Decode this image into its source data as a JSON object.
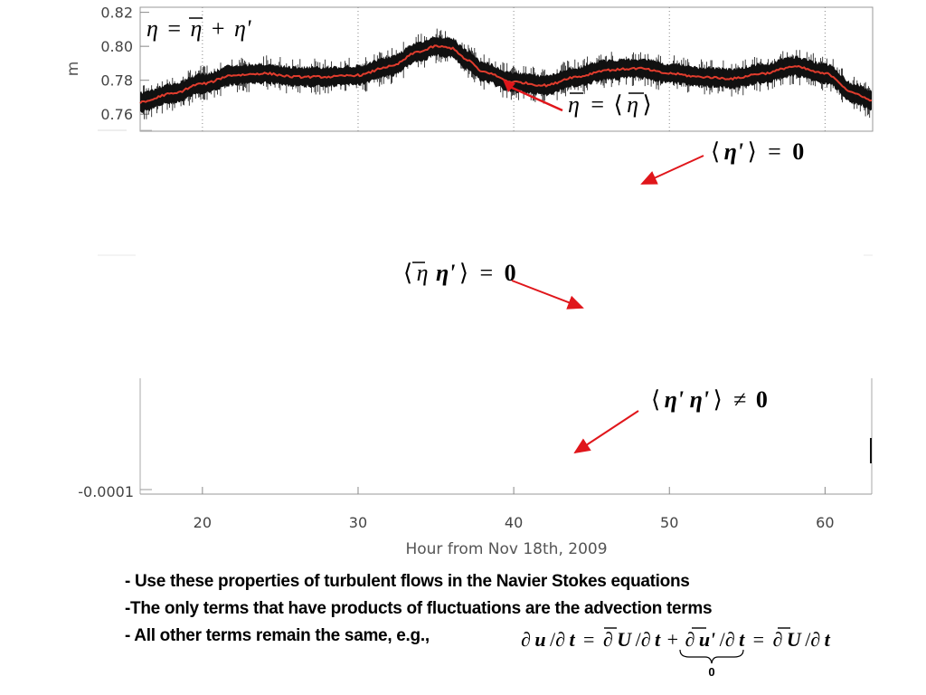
{
  "chart_data": [
    {
      "type": "line",
      "title": "",
      "xlabel": "Hour from Nov 18th, 2009",
      "ylabel": "m",
      "xlim": [
        16,
        63
      ],
      "ylim": [
        0.75,
        0.823
      ],
      "xticks": [
        20,
        30,
        40,
        50,
        60
      ],
      "xtick_labels": [
        "20",
        "30",
        "40",
        "50",
        "60"
      ],
      "yticks": [
        0.76,
        0.78,
        0.8,
        0.82
      ],
      "ytick_labels": [
        "0.76",
        "0.78",
        "0.80",
        "0.82"
      ],
      "grid": "vertical dotted at x ticks",
      "series": [
        {
          "name": "η",
          "color": "#111111",
          "style": "noisy raw signal",
          "x": [
            16,
            18,
            20,
            22,
            24,
            26,
            28,
            30,
            32,
            34,
            35,
            36,
            37,
            38,
            40,
            42,
            44,
            46,
            48,
            50,
            52,
            54,
            56,
            58,
            60,
            62,
            63
          ],
          "y": [
            0.767,
            0.772,
            0.778,
            0.783,
            0.784,
            0.782,
            0.782,
            0.783,
            0.788,
            0.797,
            0.8,
            0.799,
            0.792,
            0.785,
            0.779,
            0.777,
            0.782,
            0.786,
            0.787,
            0.784,
            0.782,
            0.781,
            0.784,
            0.788,
            0.784,
            0.772,
            0.768
          ],
          "noise_band": 0.006
        },
        {
          "name": "η̄ = ⟨η⟩",
          "color": "#e03c2d",
          "style": "smoothed mean",
          "x": [
            16,
            18,
            20,
            22,
            24,
            26,
            28,
            30,
            32,
            34,
            35,
            36,
            37,
            38,
            40,
            42,
            44,
            46,
            48,
            50,
            52,
            54,
            56,
            58,
            60,
            62,
            63
          ],
          "y": [
            0.767,
            0.772,
            0.778,
            0.783,
            0.784,
            0.782,
            0.782,
            0.783,
            0.788,
            0.797,
            0.8,
            0.799,
            0.792,
            0.785,
            0.779,
            0.777,
            0.782,
            0.786,
            0.787,
            0.784,
            0.782,
            0.781,
            0.784,
            0.788,
            0.784,
            0.772,
            0.768
          ]
        }
      ]
    },
    {
      "type": "line",
      "title": "",
      "xlabel": "Hour from Nov 18th, 2009",
      "ylabel": "",
      "xlim": [
        16,
        63
      ],
      "ylim": [
        -0.0001,
        0.0001
      ],
      "yticks": [
        -0.0001
      ],
      "ytick_labels": [
        "-0.0001"
      ],
      "series": []
    }
  ],
  "annotations": {
    "decomposition": {
      "lhs": "η",
      "eq": "=",
      "bar": "η",
      "plus": "+",
      "fluct": "η'"
    },
    "mean_def": {
      "lhs": "η",
      "eq": "=",
      "open": "⟨",
      "inner": "η",
      "close": "⟩"
    },
    "mean_fluct": {
      "open": "⟨",
      "inner": "η'",
      "close": "⟩",
      "eq": "=",
      "rhs": "0"
    },
    "mean_cross": {
      "open": "⟨",
      "inner_bar": "η",
      "inner_fluct": "η'",
      "close": "⟩",
      "eq": "=",
      "rhs": "0"
    },
    "mean_product": {
      "open": "⟨",
      "inner": "η' η'",
      "close": "⟩",
      "neq": "≠",
      "rhs": "0"
    },
    "arrow_color": "#e0161b"
  },
  "bullets": [
    "- Use these properties of turbulent flows in the Navier Stokes equations",
    "-The only terms that have products of fluctuations are the advection terms",
    "- All other terms remain the same, e.g.,"
  ],
  "navier_equation": {
    "d1": "∂",
    "u": "u",
    "s1": "/∂",
    "t1": "t",
    "eq1": "=",
    "d2": "∂",
    "U1": "U",
    "s2": "/∂",
    "t2": "t",
    "plus": "+",
    "d3": "∂",
    "up": "u'",
    "s3": "/∂",
    "t3": "t",
    "eq2": "=",
    "d4": "∂",
    "U2": "U",
    "s4": "/∂",
    "t4": "t",
    "brace_label": "0"
  }
}
